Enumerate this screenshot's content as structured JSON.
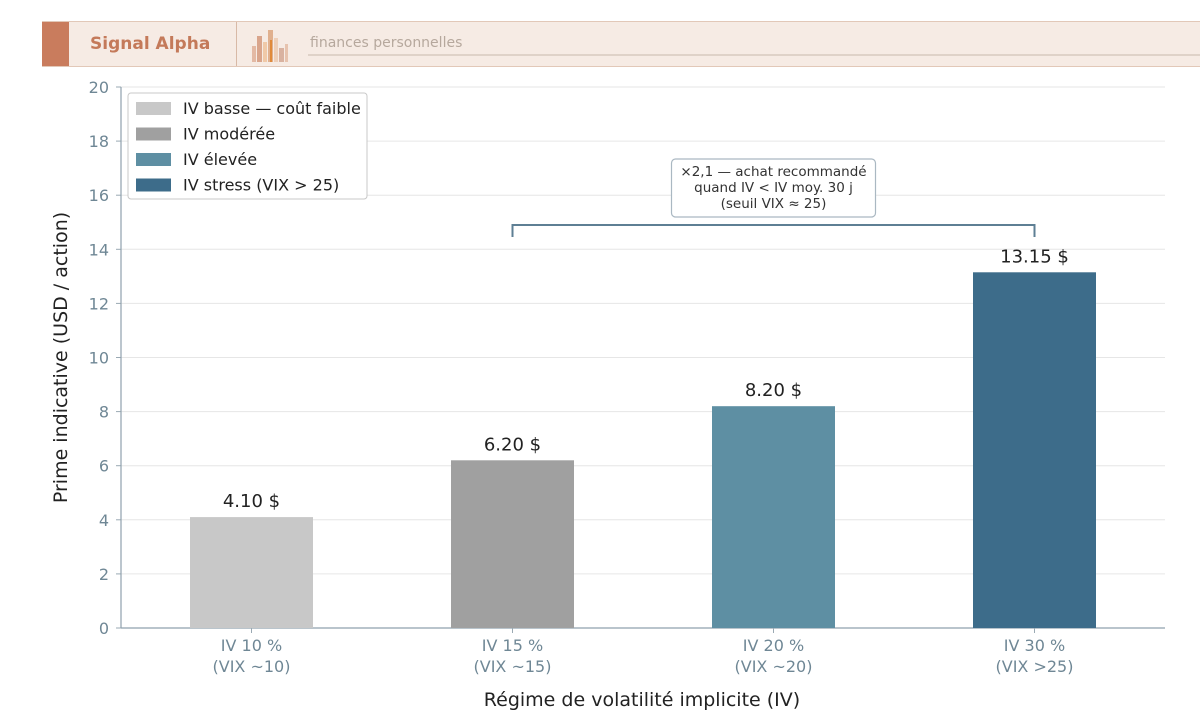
{
  "header": {
    "brand": "Signal Alpha",
    "tagline": "finances personnelles",
    "accent_color": "#c97c5d",
    "logo_icon": "city-skyline-icon"
  },
  "chart_data": {
    "type": "bar",
    "title": "",
    "xlabel": "Régime de volatilité implicite (IV)",
    "ylabel": "Prime indicative (USD / action)",
    "ylim": [
      0,
      20
    ],
    "yticks": [
      0,
      2,
      4,
      6,
      8,
      10,
      12,
      14,
      16,
      18,
      20
    ],
    "grid": true,
    "legend_position": "top-left",
    "categories": [
      [
        "IV 10 %",
        "(VIX ~10)"
      ],
      [
        "IV 15 %",
        "(VIX ~15)"
      ],
      [
        "IV 20 %",
        "(VIX ~20)"
      ],
      [
        "IV 30 %",
        "(VIX >25)"
      ]
    ],
    "values": [
      4.1,
      6.2,
      8.2,
      13.15
    ],
    "value_labels": [
      "4.10 $",
      "6.20 $",
      "8.20 $",
      "13.15 $"
    ],
    "colors": [
      "#c8c8c8",
      "#a0a0a0",
      "#5e8fa3",
      "#3d6c8a"
    ],
    "legend": [
      "IV basse — coût faible",
      "IV modérée",
      "IV élevée",
      "IV stress (VIX > 25)"
    ],
    "annotation": {
      "lines": [
        "×2,1 — achat recommandé",
        "quand IV < IV moy. 30 j",
        "(seuil VIX ≈ 25)"
      ],
      "from_category": 1,
      "to_category": 3,
      "bracket_value": 14.9
    }
  }
}
